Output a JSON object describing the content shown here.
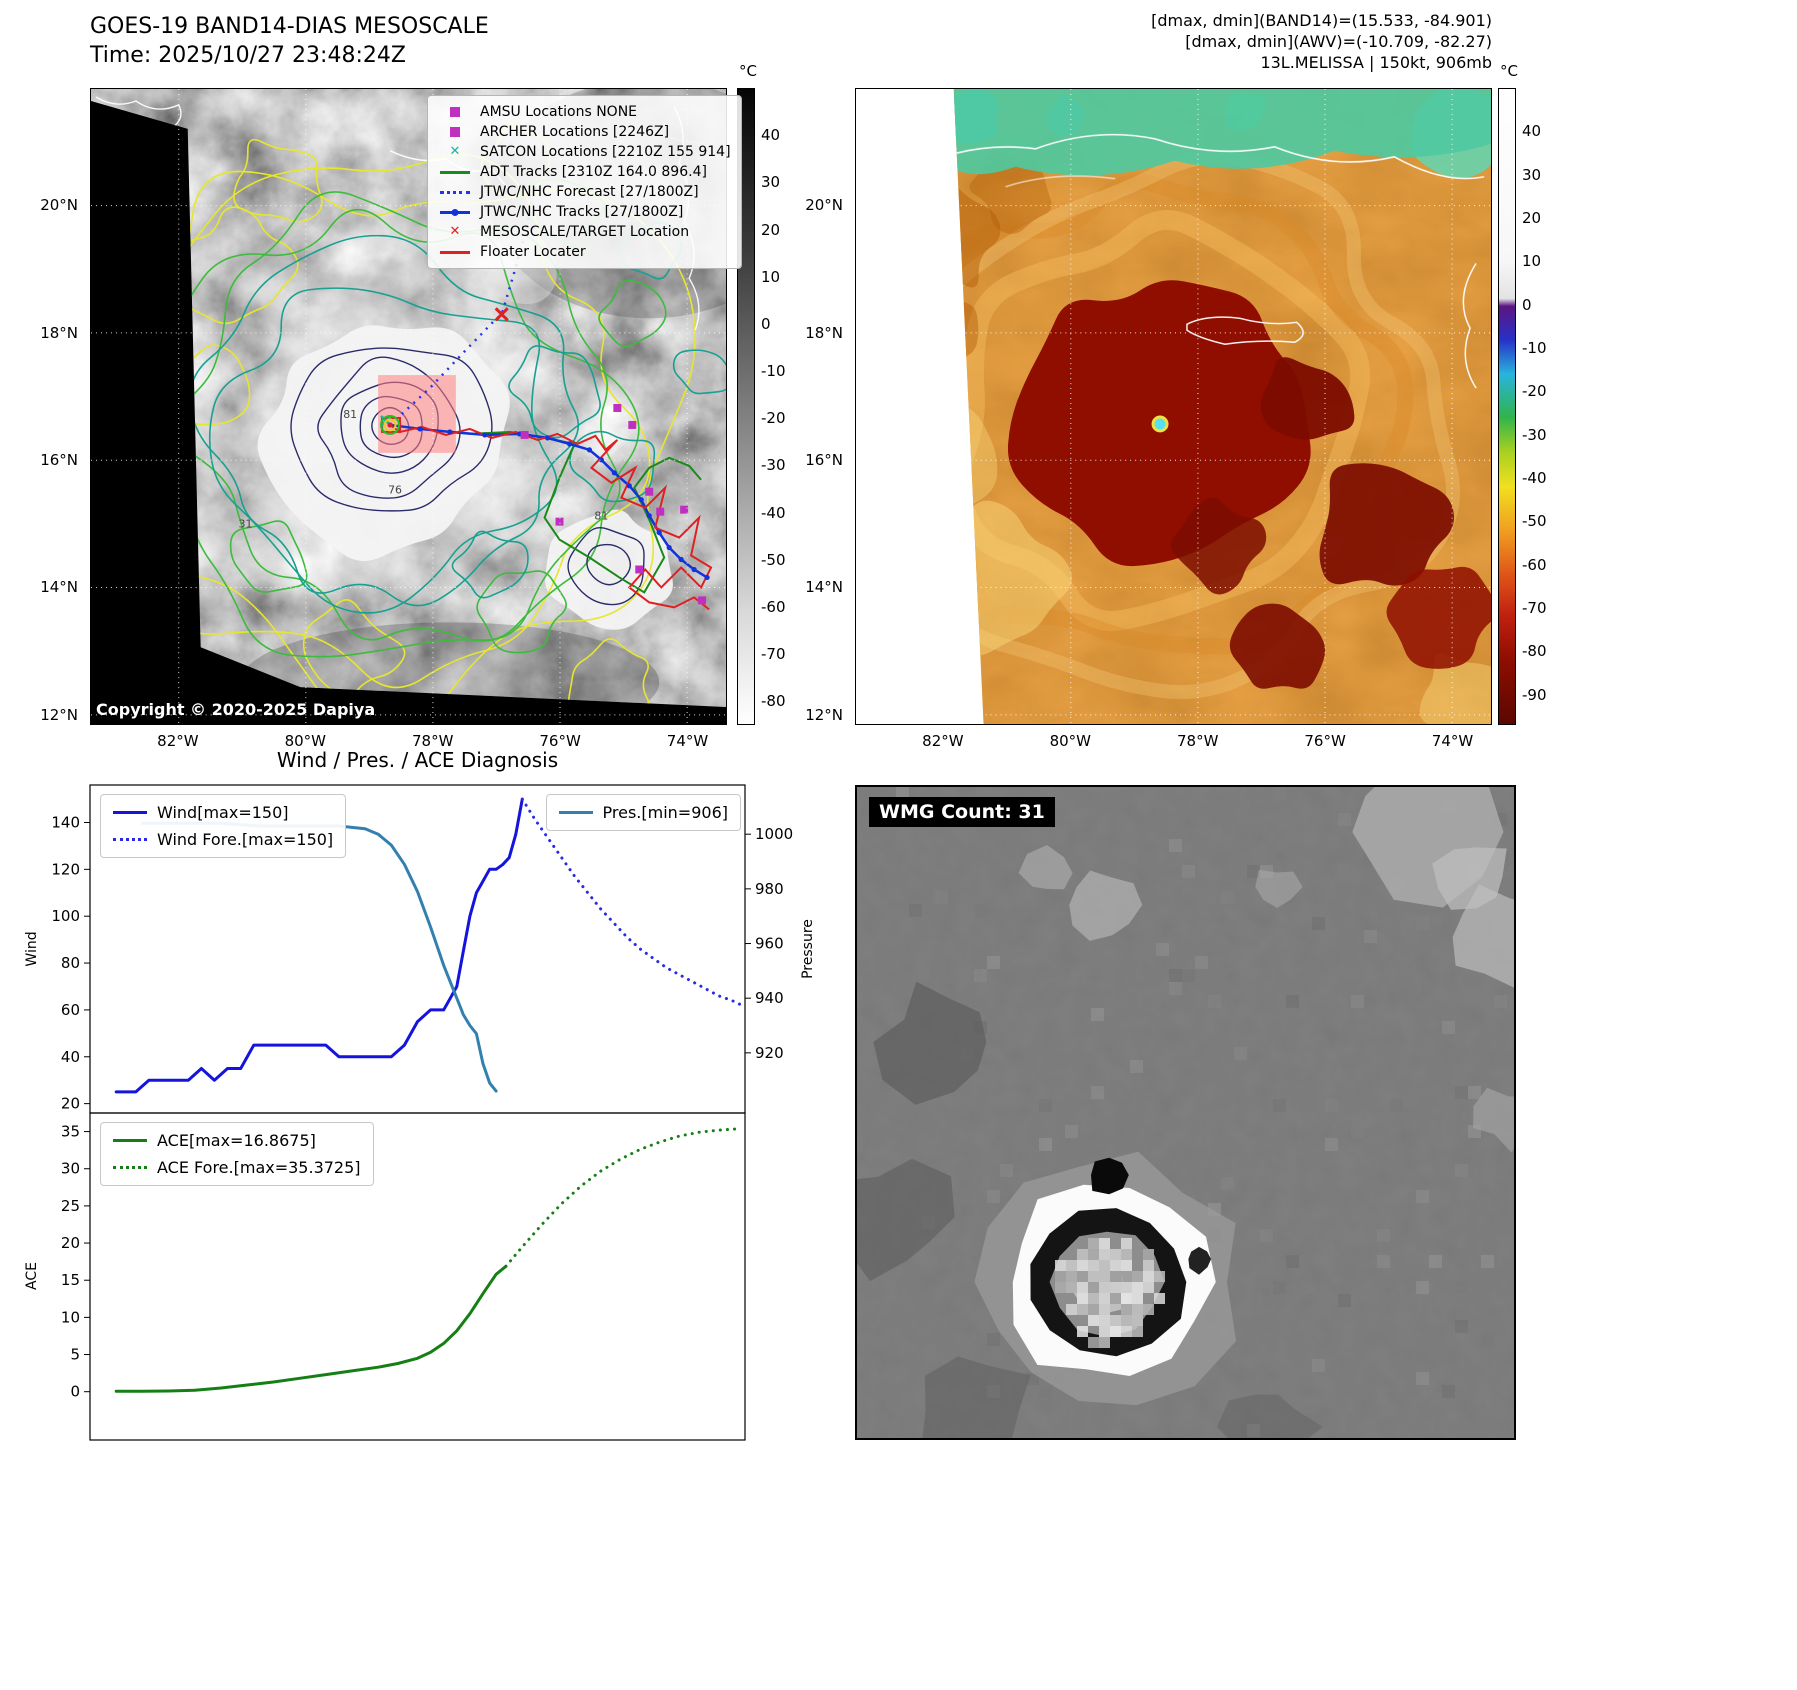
{
  "panel_tl": {
    "title": "GOES-19 BAND14-DIAS MESOSCALE",
    "time": "Time: 2025/10/27 23:48:24Z",
    "copyright": "Copyright © 2020-2025 Dapiya",
    "legend": [
      {
        "label": "AMSU Locations NONE",
        "type": "square",
        "color": "#c030c0"
      },
      {
        "label": "ARCHER Locations [2246Z]",
        "type": "square",
        "color": "#c030c0"
      },
      {
        "label": "SATCON Locations [2210Z 155 914]",
        "type": "cross",
        "color": "#1ab0a6"
      },
      {
        "label": "ADT Tracks [2310Z 164.0 896.4]",
        "type": "line",
        "color": "#1a8a1a"
      },
      {
        "label": "JTWC/NHC Forecast [27/1800Z]",
        "type": "dotted",
        "color": "#2233ee"
      },
      {
        "label": "JTWC/NHC Tracks [27/1800Z]",
        "type": "line-dot",
        "color": "#1133dd"
      },
      {
        "label": "MESOSCALE/TARGET Location",
        "type": "cross",
        "color": "#e02020"
      },
      {
        "label": "Floater Locater",
        "type": "line",
        "color": "#e02020"
      }
    ],
    "colorbar": {
      "unit": "°C",
      "ticks": [
        40,
        30,
        20,
        10,
        0,
        -10,
        -20,
        -30,
        -40,
        -50,
        -60,
        -70,
        -80
      ]
    },
    "lat_ticks": [
      "20°N",
      "18°N",
      "16°N",
      "14°N",
      "12°N"
    ],
    "lon_ticks": [
      "82°W",
      "80°W",
      "78°W",
      "76°W",
      "74°W"
    ],
    "contour_labels": [
      "81",
      "76",
      "31",
      "81"
    ]
  },
  "panel_tr": {
    "info_lines": [
      "[dmax, dmin](BAND14)=(15.533, -84.901)",
      "[dmax, dmin](AWV)=(-10.709, -82.27)",
      "13L.MELISSA | 150kt, 906mb"
    ],
    "colorbar": {
      "unit": "°C",
      "ticks": [
        40,
        30,
        20,
        10,
        0,
        -10,
        -20,
        -30,
        -40,
        -50,
        -60,
        -70,
        -80,
        -90
      ]
    },
    "lat_ticks": [
      "20°N",
      "18°N",
      "16°N",
      "14°N",
      "12°N"
    ],
    "lon_ticks": [
      "82°W",
      "80°W",
      "78°W",
      "76°W",
      "74°W"
    ]
  },
  "panel_bl": {
    "title": "Wind / Pres. / ACE Diagnosis"
  },
  "panel_br": {
    "wmg_label": "WMG Count: 31"
  },
  "chart_data": [
    {
      "type": "line",
      "title": "Wind / Pres. / ACE Diagnosis",
      "xlabel": "",
      "ylabel": "Wind",
      "y2label": "Pressure",
      "xlim": [
        0,
        100
      ],
      "ylim": [
        16,
        156
      ],
      "y2lim": [
        898,
        1018
      ],
      "yticks": [
        20,
        40,
        60,
        80,
        100,
        120,
        140
      ],
      "y2ticks": [
        920,
        940,
        960,
        980,
        1000
      ],
      "grid": false,
      "legend_position": "upper left and upper right",
      "series": [
        {
          "name": "Wind[max=150]",
          "axis": "y",
          "style": "solid",
          "color": "#1414dc",
          "legend_box": 0,
          "x": [
            4,
            7,
            9,
            11,
            13,
            15,
            17,
            19,
            21,
            23,
            25,
            27,
            30,
            33,
            36,
            38,
            40,
            43,
            46,
            48,
            50,
            52,
            54,
            55,
            56,
            57,
            58,
            59,
            60,
            61,
            62,
            63,
            64,
            65,
            66
          ],
          "values": [
            25,
            25,
            30,
            30,
            30,
            30,
            35,
            30,
            35,
            35,
            45,
            45,
            45,
            45,
            45,
            40,
            40,
            40,
            40,
            45,
            55,
            60,
            60,
            65,
            70,
            85,
            100,
            110,
            115,
            120,
            120,
            122,
            125,
            135,
            150
          ]
        },
        {
          "name": "Wind Fore.[max=150]",
          "axis": "y",
          "style": "dotted",
          "color": "#2a2ae6",
          "legend_box": 0,
          "x": [
            66,
            68,
            70,
            72,
            74,
            76,
            78,
            80,
            82,
            84,
            86,
            88,
            90,
            92,
            94,
            96,
            98,
            99.5
          ],
          "values": [
            150,
            141,
            133,
            125,
            117,
            110,
            103,
            97,
            91,
            86,
            82,
            78,
            75,
            72,
            69,
            66,
            64,
            62
          ]
        },
        {
          "name": "Pres.[min=906]",
          "axis": "y2",
          "style": "solid",
          "color": "#3380b0",
          "legend_box": 1,
          "x": [
            8,
            14,
            20,
            26,
            32,
            38,
            42,
            44,
            46,
            48,
            50,
            52,
            54,
            56,
            57,
            58,
            59,
            60,
            61,
            62
          ],
          "values": [
            1004,
            1004,
            1004,
            1003,
            1003,
            1003,
            1002,
            1000,
            996,
            989,
            979,
            966,
            952,
            940,
            934,
            930,
            927,
            916,
            909,
            906
          ]
        }
      ]
    },
    {
      "type": "line",
      "title": "",
      "xlabel": "",
      "ylabel": "ACE",
      "xlim": [
        0,
        100
      ],
      "ylim": [
        -6.5,
        37.5
      ],
      "yticks": [
        0,
        5,
        10,
        15,
        20,
        25,
        30,
        35
      ],
      "grid": false,
      "legend_position": "upper left",
      "series": [
        {
          "name": "ACE[max=16.8675]",
          "axis": "y",
          "style": "solid",
          "color": "#157f15",
          "legend_box": 0,
          "x": [
            4,
            8,
            12,
            16,
            20,
            24,
            28,
            32,
            36,
            40,
            44,
            47,
            50,
            52,
            54,
            56,
            58,
            60,
            62,
            63.5
          ],
          "values": [
            0.05,
            0.05,
            0.1,
            0.2,
            0.5,
            0.9,
            1.3,
            1.8,
            2.3,
            2.8,
            3.3,
            3.8,
            4.5,
            5.3,
            6.5,
            8.2,
            10.5,
            13.2,
            15.8,
            16.87
          ]
        },
        {
          "name": "ACE Fore.[max=35.3725]",
          "axis": "y",
          "style": "dotted",
          "color": "#157f15",
          "legend_box": 0,
          "x": [
            63.5,
            66,
            69,
            72,
            75,
            78,
            81,
            84,
            87,
            90,
            93,
            96,
            99
          ],
          "values": [
            16.87,
            19.5,
            22.5,
            25.3,
            27.7,
            29.7,
            31.3,
            32.6,
            33.6,
            34.4,
            34.9,
            35.2,
            35.37
          ]
        }
      ]
    }
  ]
}
